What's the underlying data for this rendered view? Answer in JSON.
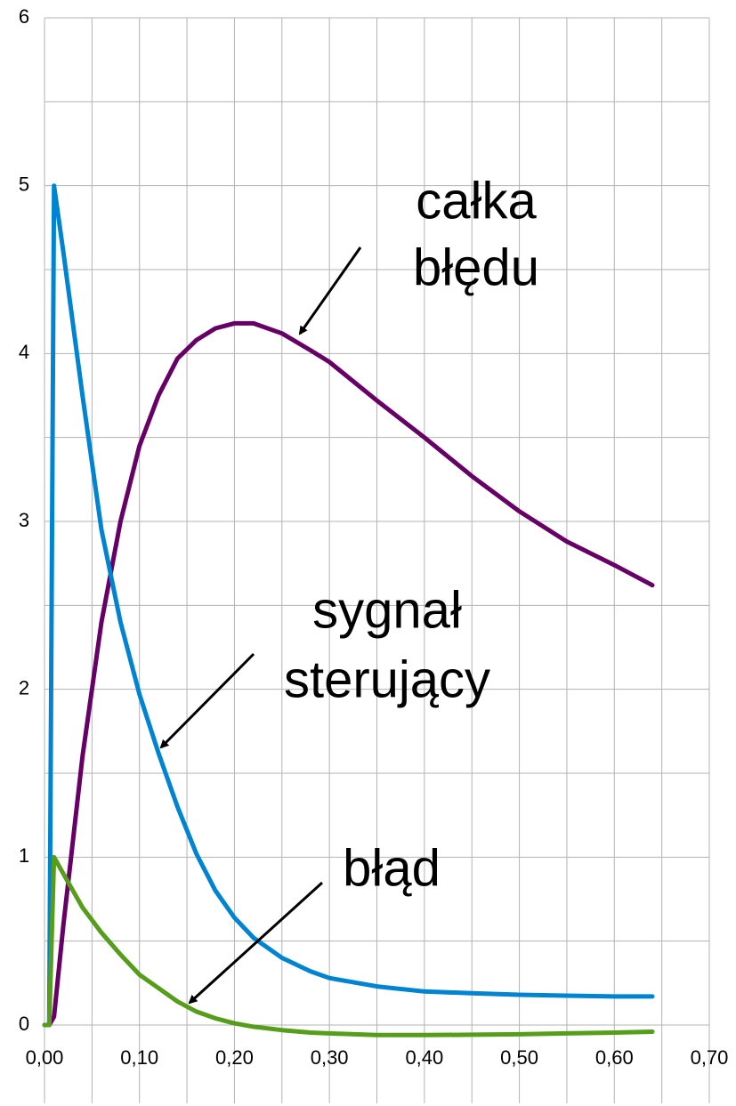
{
  "chart_data": {
    "type": "line",
    "x": [
      0,
      0.005,
      0.01,
      0.02,
      0.04,
      0.06,
      0.08,
      0.1,
      0.12,
      0.14,
      0.16,
      0.18,
      0.2,
      0.22,
      0.25,
      0.28,
      0.3,
      0.35,
      0.4,
      0.45,
      0.5,
      0.55,
      0.6,
      0.64
    ],
    "series": [
      {
        "color": "#660066",
        "values": [
          0,
          0,
          0.05,
          0.6,
          1.6,
          2.4,
          3.0,
          3.45,
          3.75,
          3.97,
          4.08,
          4.15,
          4.18,
          4.18,
          4.12,
          4.02,
          3.95,
          3.72,
          3.5,
          3.27,
          3.06,
          2.88,
          2.74,
          2.62
        ]
      },
      {
        "color": "#0084d1",
        "values": [
          0,
          0,
          5.0,
          4.6,
          3.75,
          2.95,
          2.4,
          1.97,
          1.62,
          1.3,
          1.02,
          0.8,
          0.64,
          0.52,
          0.4,
          0.32,
          0.28,
          0.23,
          0.2,
          0.19,
          0.18,
          0.175,
          0.17,
          0.17
        ]
      },
      {
        "color": "#579d1c",
        "values": [
          0,
          0,
          1.0,
          0.9,
          0.7,
          0.55,
          0.42,
          0.3,
          0.22,
          0.14,
          0.08,
          0.04,
          0.01,
          -0.01,
          -0.03,
          -0.045,
          -0.05,
          -0.06,
          -0.06,
          -0.058,
          -0.055,
          -0.05,
          -0.045,
          -0.04
        ]
      }
    ],
    "annotations": [
      {
        "lines": [
          "całka",
          "błędu"
        ]
      },
      {
        "lines": [
          "sygnał",
          "sterujący"
        ]
      },
      {
        "lines": [
          "błąd"
        ]
      }
    ],
    "xlim": [
      0,
      0.7
    ],
    "ylim": [
      0,
      6
    ],
    "xticks": [
      {
        "value": 0,
        "label": "0,00"
      },
      {
        "value": 0.1,
        "label": "0,10"
      },
      {
        "value": 0.2,
        "label": "0,20"
      },
      {
        "value": 0.3,
        "label": "0,30"
      },
      {
        "value": 0.4,
        "label": "0,40"
      },
      {
        "value": 0.5,
        "label": "0,50"
      },
      {
        "value": 0.6,
        "label": "0,60"
      },
      {
        "value": 0.7,
        "label": "0,70"
      }
    ],
    "yticks": [
      0,
      1,
      2,
      3,
      4,
      5,
      6
    ],
    "minor_xticks": [
      0.05,
      0.15,
      0.25,
      0.35,
      0.45,
      0.55,
      0.65
    ],
    "minor_yticks": [
      0.5,
      1.5,
      2.5,
      3.5,
      4.5,
      5.5
    ],
    "grid": true
  }
}
